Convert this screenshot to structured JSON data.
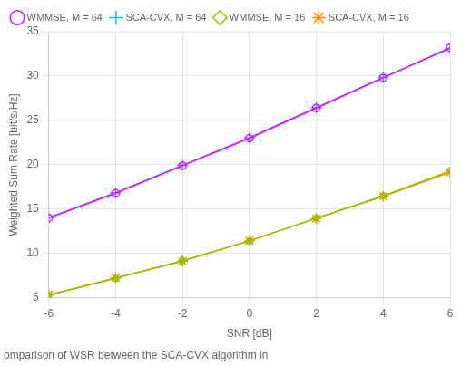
{
  "chart_data": {
    "type": "line",
    "x": [
      -6,
      -4,
      -2,
      0,
      2,
      4,
      6
    ],
    "series": [
      {
        "name": "WMMSE, M = 64",
        "color": "#FF00FF",
        "marker": "circle",
        "line_style": "solid",
        "values": [
          14.0,
          16.8,
          19.9,
          23.0,
          26.4,
          29.8,
          33.2
        ]
      },
      {
        "name": "SCA-CVX, M = 64",
        "color": "#00BFFF",
        "marker": "plus",
        "line_style": "solid",
        "values": [
          14.05,
          16.85,
          19.95,
          23.05,
          26.45,
          29.85,
          33.1
        ]
      },
      {
        "name": "WMMSE, M = 16",
        "color": "#80CC00",
        "marker": "diamond",
        "line_style": "solid",
        "values": [
          5.3,
          7.2,
          9.2,
          11.4,
          14.0,
          16.5,
          19.3
        ]
      },
      {
        "name": "SCA-CVX, M = 16",
        "color": "#FF8C00",
        "marker": "star",
        "line_style": "solid",
        "values": [
          5.35,
          7.25,
          9.15,
          11.45,
          13.95,
          16.45,
          19.15
        ]
      }
    ],
    "xlabel": "SNR [dB]",
    "ylabel": "Weighted Sum Rate [bit/s/Hz]",
    "caption": "omparison of WSR between the SCA-CVX algorithm in",
    "xlim": [
      -6,
      6
    ],
    "ylim": [
      5,
      35
    ],
    "xticks": [
      -6,
      -4,
      -2,
      0,
      2,
      4,
      6
    ],
    "yticks": [
      5,
      10,
      15,
      20,
      25,
      30,
      35
    ],
    "grid": true,
    "legend": "upper left"
  }
}
